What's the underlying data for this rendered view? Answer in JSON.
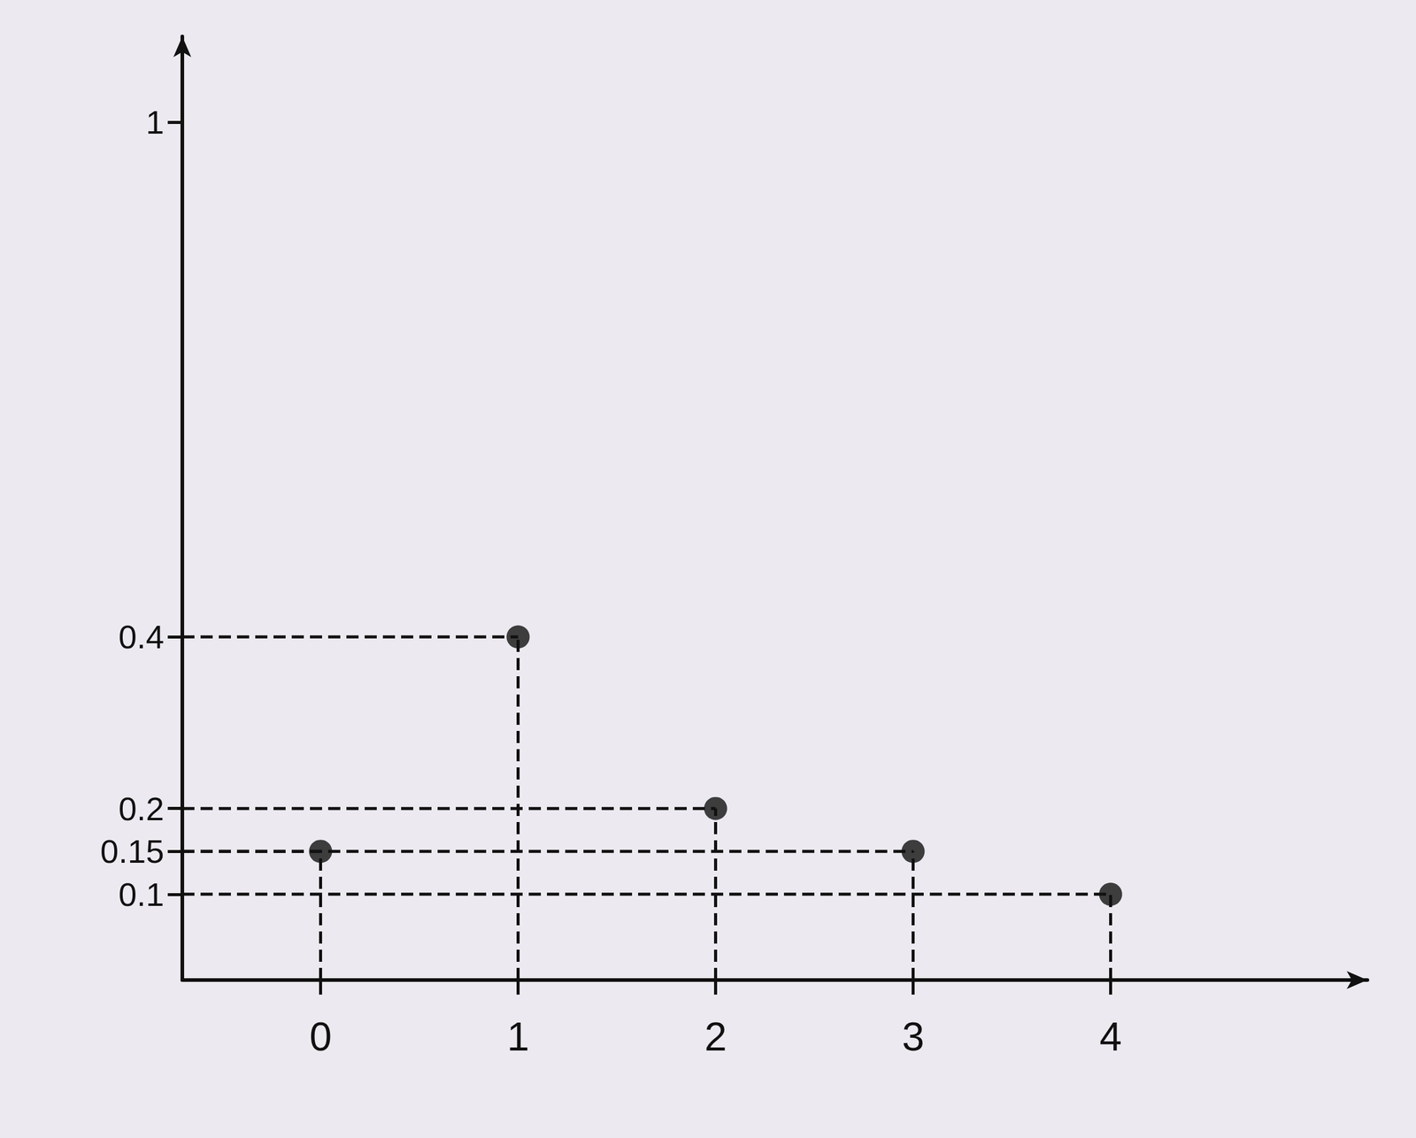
{
  "chart_data": {
    "type": "scatter",
    "x": [
      0,
      1,
      2,
      3,
      4
    ],
    "values": [
      0.15,
      0.4,
      0.2,
      0.15,
      0.1
    ],
    "color": "#111111",
    "marker": "circle",
    "line_style": "dashed",
    "xlim": [
      -0.7,
      5.3
    ],
    "xticks": [
      0,
      1,
      2,
      3,
      4
    ],
    "ylim": [
      0,
      1.1
    ],
    "yticks": [
      0.1,
      0.15,
      0.2,
      0.4,
      1
    ],
    "grid": false
  }
}
